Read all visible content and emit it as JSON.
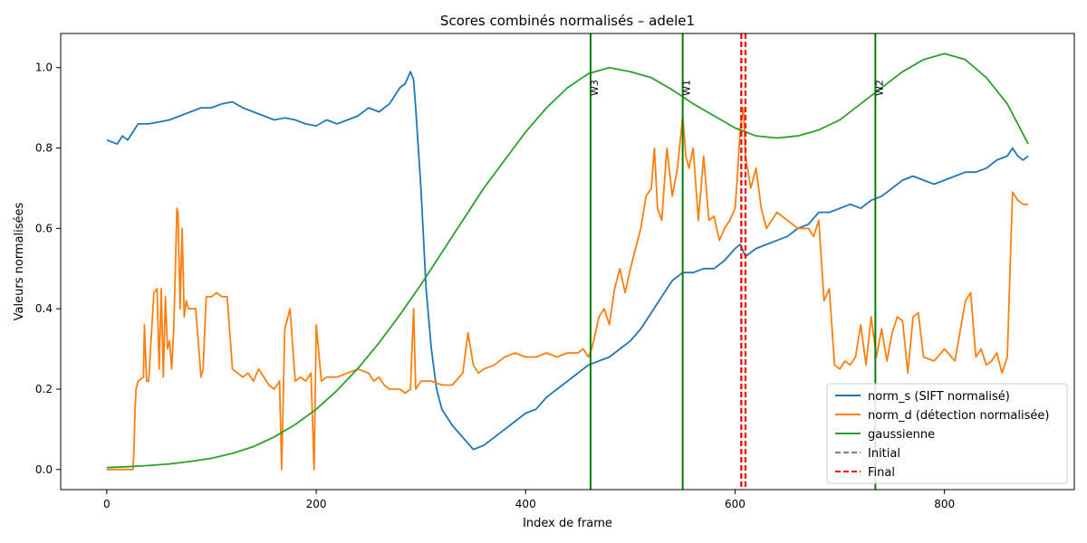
{
  "chart_data": {
    "type": "line",
    "title": "Scores combinés normalisés – adele1",
    "xlabel": "Index de frame",
    "ylabel": "Valeurs normalisées",
    "xlim": [
      -44,
      924
    ],
    "ylim": [
      -0.05,
      1.085
    ],
    "xticks": [
      0,
      200,
      400,
      600,
      800
    ],
    "yticks": [
      0.0,
      0.2,
      0.4,
      0.6,
      0.8,
      1.0
    ],
    "xtick_labels": [
      "0",
      "200",
      "400",
      "600",
      "800"
    ],
    "ytick_labels": [
      "0.0",
      "0.2",
      "0.4",
      "0.6",
      "0.8",
      "1.0"
    ],
    "grid": false,
    "legend_position": "lower-right",
    "series": [
      {
        "name": "norm_s (SIFT normalisé)",
        "color": "#1f77b4",
        "x": [
          0,
          5,
          10,
          15,
          20,
          25,
          30,
          40,
          50,
          60,
          70,
          80,
          90,
          100,
          110,
          120,
          130,
          140,
          150,
          160,
          170,
          180,
          190,
          200,
          210,
          220,
          230,
          240,
          250,
          260,
          270,
          280,
          285,
          290,
          293,
          295,
          297,
          300,
          305,
          310,
          315,
          320,
          330,
          340,
          350,
          360,
          370,
          380,
          390,
          400,
          410,
          420,
          430,
          440,
          450,
          460,
          470,
          480,
          490,
          500,
          510,
          520,
          530,
          540,
          550,
          560,
          570,
          580,
          590,
          600,
          605,
          610,
          620,
          630,
          640,
          650,
          660,
          670,
          680,
          690,
          700,
          710,
          720,
          730,
          740,
          750,
          760,
          770,
          780,
          790,
          800,
          810,
          820,
          830,
          840,
          850,
          860,
          865,
          870,
          875,
          880
        ],
        "y": [
          0.82,
          0.815,
          0.81,
          0.83,
          0.82,
          0.84,
          0.86,
          0.86,
          0.865,
          0.87,
          0.88,
          0.89,
          0.9,
          0.9,
          0.91,
          0.915,
          0.9,
          0.89,
          0.88,
          0.87,
          0.875,
          0.87,
          0.86,
          0.855,
          0.87,
          0.86,
          0.87,
          0.88,
          0.9,
          0.89,
          0.91,
          0.95,
          0.96,
          0.99,
          0.97,
          0.9,
          0.82,
          0.7,
          0.45,
          0.3,
          0.2,
          0.15,
          0.11,
          0.08,
          0.05,
          0.06,
          0.08,
          0.1,
          0.12,
          0.14,
          0.15,
          0.18,
          0.2,
          0.22,
          0.24,
          0.26,
          0.27,
          0.28,
          0.3,
          0.32,
          0.35,
          0.39,
          0.43,
          0.47,
          0.49,
          0.49,
          0.5,
          0.5,
          0.52,
          0.55,
          0.56,
          0.53,
          0.55,
          0.56,
          0.57,
          0.58,
          0.6,
          0.61,
          0.64,
          0.64,
          0.65,
          0.66,
          0.65,
          0.67,
          0.68,
          0.7,
          0.72,
          0.73,
          0.72,
          0.71,
          0.72,
          0.73,
          0.74,
          0.74,
          0.75,
          0.77,
          0.78,
          0.8,
          0.78,
          0.77,
          0.78
        ]
      },
      {
        "name": "norm_d (détection normalisée)",
        "color": "#ff7f0e",
        "x": [
          0,
          10,
          20,
          25,
          26,
          27,
          28,
          30,
          35,
          36,
          38,
          40,
          45,
          48,
          50,
          52,
          54,
          56,
          58,
          60,
          62,
          64,
          66,
          67,
          68,
          70,
          72,
          74,
          76,
          78,
          80,
          85,
          90,
          92,
          95,
          100,
          105,
          110,
          115,
          120,
          125,
          130,
          135,
          140,
          145,
          150,
          155,
          160,
          165,
          167,
          170,
          175,
          180,
          185,
          190,
          195,
          198,
          200,
          205,
          210,
          220,
          230,
          240,
          250,
          255,
          260,
          265,
          270,
          280,
          285,
          290,
          293,
          295,
          300,
          305,
          310,
          320,
          330,
          340,
          345,
          350,
          355,
          360,
          370,
          380,
          390,
          400,
          410,
          420,
          430,
          440,
          450,
          455,
          460,
          463,
          465,
          470,
          475,
          480,
          485,
          490,
          495,
          500,
          505,
          510,
          515,
          520,
          523,
          526,
          530,
          535,
          540,
          545,
          550,
          553,
          556,
          560,
          565,
          570,
          575,
          580,
          585,
          590,
          595,
          600,
          602,
          605,
          608,
          610,
          615,
          620,
          625,
          630,
          635,
          640,
          650,
          660,
          670,
          675,
          680,
          685,
          690,
          695,
          700,
          705,
          710,
          715,
          720,
          725,
          730,
          735,
          740,
          745,
          750,
          755,
          760,
          765,
          770,
          775,
          780,
          790,
          800,
          810,
          820,
          825,
          830,
          835,
          840,
          845,
          850,
          855,
          860,
          865,
          870,
          875,
          880
        ],
        "y": [
          0.0,
          0.0,
          0.0,
          0.0,
          0.05,
          0.15,
          0.2,
          0.22,
          0.23,
          0.36,
          0.22,
          0.22,
          0.44,
          0.45,
          0.25,
          0.45,
          0.23,
          0.43,
          0.3,
          0.32,
          0.25,
          0.35,
          0.55,
          0.65,
          0.64,
          0.4,
          0.6,
          0.38,
          0.42,
          0.4,
          0.4,
          0.4,
          0.23,
          0.25,
          0.43,
          0.43,
          0.44,
          0.43,
          0.43,
          0.25,
          0.24,
          0.23,
          0.24,
          0.22,
          0.25,
          0.23,
          0.21,
          0.2,
          0.22,
          0.0,
          0.35,
          0.4,
          0.22,
          0.23,
          0.22,
          0.24,
          0.0,
          0.36,
          0.22,
          0.23,
          0.23,
          0.24,
          0.25,
          0.24,
          0.22,
          0.23,
          0.21,
          0.2,
          0.2,
          0.19,
          0.2,
          0.4,
          0.2,
          0.22,
          0.22,
          0.22,
          0.21,
          0.21,
          0.24,
          0.34,
          0.26,
          0.24,
          0.25,
          0.26,
          0.28,
          0.29,
          0.28,
          0.28,
          0.29,
          0.28,
          0.29,
          0.29,
          0.3,
          0.28,
          0.3,
          0.32,
          0.38,
          0.4,
          0.36,
          0.45,
          0.5,
          0.44,
          0.5,
          0.55,
          0.6,
          0.68,
          0.7,
          0.8,
          0.65,
          0.62,
          0.8,
          0.68,
          0.75,
          0.88,
          0.78,
          0.75,
          0.8,
          0.62,
          0.78,
          0.62,
          0.63,
          0.57,
          0.6,
          0.62,
          0.65,
          0.72,
          0.85,
          0.9,
          0.78,
          0.7,
          0.75,
          0.65,
          0.6,
          0.62,
          0.64,
          0.62,
          0.6,
          0.6,
          0.58,
          0.62,
          0.42,
          0.45,
          0.26,
          0.25,
          0.27,
          0.26,
          0.28,
          0.36,
          0.26,
          0.38,
          0.28,
          0.35,
          0.27,
          0.34,
          0.38,
          0.37,
          0.24,
          0.38,
          0.39,
          0.28,
          0.27,
          0.3,
          0.27,
          0.42,
          0.44,
          0.28,
          0.3,
          0.26,
          0.27,
          0.29,
          0.24,
          0.28,
          0.69,
          0.67,
          0.66,
          0.66
        ]
      },
      {
        "name": "gaussienne",
        "color": "#2ca02c",
        "x": [
          0,
          20,
          40,
          60,
          80,
          100,
          120,
          140,
          160,
          180,
          200,
          220,
          240,
          260,
          280,
          300,
          320,
          340,
          360,
          380,
          400,
          420,
          440,
          460,
          480,
          500,
          520,
          540,
          560,
          580,
          600,
          620,
          640,
          660,
          680,
          700,
          720,
          740,
          760,
          780,
          800,
          820,
          840,
          860,
          880
        ],
        "y": [
          0.005,
          0.007,
          0.01,
          0.014,
          0.02,
          0.028,
          0.04,
          0.057,
          0.081,
          0.112,
          0.15,
          0.197,
          0.252,
          0.315,
          0.385,
          0.46,
          0.54,
          0.62,
          0.7,
          0.77,
          0.84,
          0.9,
          0.95,
          0.985,
          1.0,
          0.99,
          0.975,
          0.945,
          0.91,
          0.88,
          0.85,
          0.83,
          0.825,
          0.83,
          0.845,
          0.87,
          0.91,
          0.95,
          0.99,
          1.02,
          1.035,
          1.02,
          0.975,
          0.91,
          0.81
        ]
      }
    ],
    "vertical_lines": [
      {
        "x": 462,
        "label": "W3",
        "color": "#008000"
      },
      {
        "x": 550,
        "label": "W1",
        "color": "#008000"
      },
      {
        "x": 734,
        "label": "W2",
        "color": "#008000"
      }
    ],
    "markers": [
      {
        "name": "Initial",
        "x": 606,
        "color": "#808080",
        "style": "dashed"
      },
      {
        "name": "Final",
        "x": 606,
        "color": "#ff0000",
        "style": "dashed"
      },
      {
        "name": "Final",
        "x": 610,
        "color": "#ff0000",
        "style": "dashed"
      }
    ],
    "legend": [
      {
        "label": "norm_s (SIFT normalisé)",
        "color": "#1f77b4",
        "style": "solid"
      },
      {
        "label": "norm_d (détection normalisée)",
        "color": "#ff7f0e",
        "style": "solid"
      },
      {
        "label": "gaussienne",
        "color": "#2ca02c",
        "style": "solid"
      },
      {
        "label": "Initial",
        "color": "#808080",
        "style": "dashed"
      },
      {
        "label": "Final",
        "color": "#ff0000",
        "style": "dashed"
      }
    ]
  }
}
